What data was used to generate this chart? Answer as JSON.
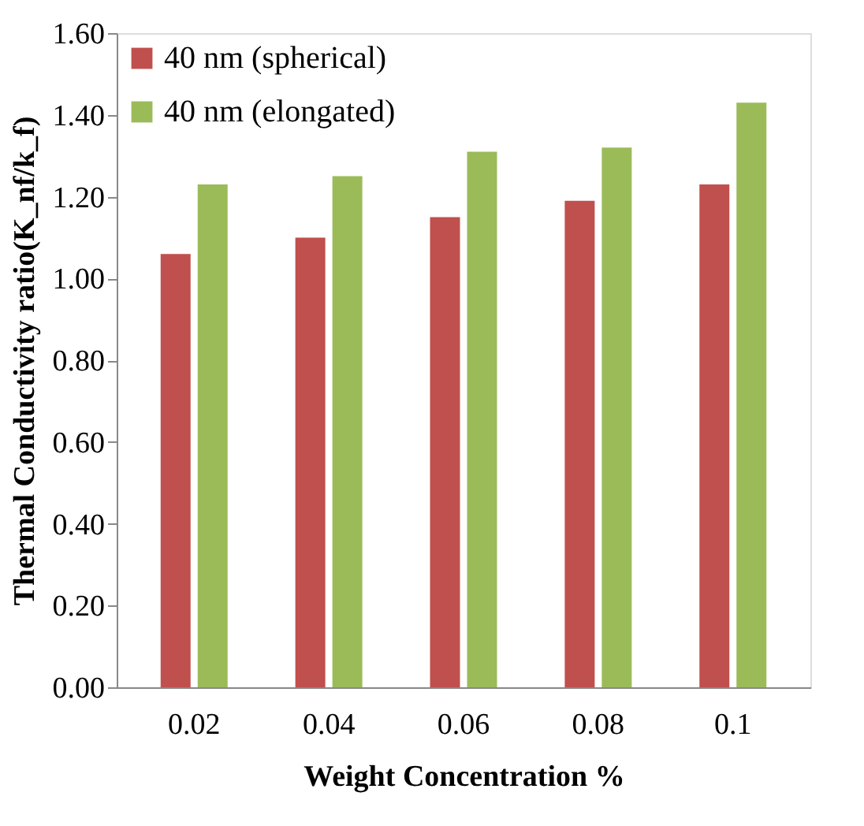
{
  "chart_data": {
    "type": "bar",
    "xlabel": "Weight Concentration %",
    "ylabel": "Thermal Conductivity ratio(K_nf/k_f)",
    "categories": [
      "0.02",
      "0.04",
      "0.06",
      "0.08",
      "0.1"
    ],
    "series": [
      {
        "name": "40 nm (spherical)",
        "color": "#c0504d",
        "values": [
          1.06,
          1.1,
          1.15,
          1.19,
          1.23
        ]
      },
      {
        "name": "40 nm (elongated)",
        "color": "#9bbb59",
        "values": [
          1.23,
          1.25,
          1.31,
          1.32,
          1.43
        ]
      }
    ],
    "ylim": [
      0,
      1.6
    ],
    "yticks": [
      {
        "value": 0,
        "label": "0.00"
      },
      {
        "value": 0.2,
        "label": "0.20"
      },
      {
        "value": 0.4,
        "label": "0.40"
      },
      {
        "value": 0.6,
        "label": "0.60"
      },
      {
        "value": 0.8,
        "label": "0.80"
      },
      {
        "value": 1.0,
        "label": "1.00"
      },
      {
        "value": 1.2,
        "label": "1.20"
      },
      {
        "value": 1.4,
        "label": "1.40"
      },
      {
        "value": 1.6,
        "label": "1.60"
      }
    ],
    "grid": false,
    "legend": "top left"
  }
}
